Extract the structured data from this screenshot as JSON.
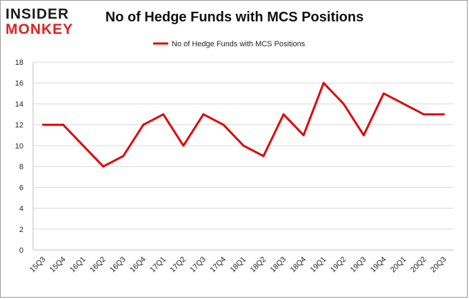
{
  "logo": {
    "line1": "INSIDER",
    "line2": "MONKEY"
  },
  "chart_data": {
    "type": "line",
    "title": "No of Hedge Funds with MCS Positions",
    "xlabel": "",
    "ylabel": "",
    "categories": [
      "15Q3",
      "15Q4",
      "16Q1",
      "16Q2",
      "16Q3",
      "16Q4",
      "17Q1",
      "17Q2",
      "17Q3",
      "17Q4",
      "18Q1",
      "18Q2",
      "18Q3",
      "18Q4",
      "19Q1",
      "19Q2",
      "19Q3",
      "19Q4",
      "20Q1",
      "20Q2",
      "20Q3"
    ],
    "series": [
      {
        "name": "No of Hedge Funds with MCS Positions",
        "color": "#e00000",
        "values": [
          12,
          12,
          10,
          8,
          9,
          12,
          13,
          10,
          13,
          12,
          10,
          9,
          13,
          11,
          16,
          14,
          11,
          15,
          14,
          13,
          13
        ]
      }
    ],
    "ylim": [
      0,
      18
    ],
    "yticks": [
      0,
      2,
      4,
      6,
      8,
      10,
      12,
      14,
      16,
      18
    ],
    "grid": true,
    "legend_position": "top-center"
  }
}
